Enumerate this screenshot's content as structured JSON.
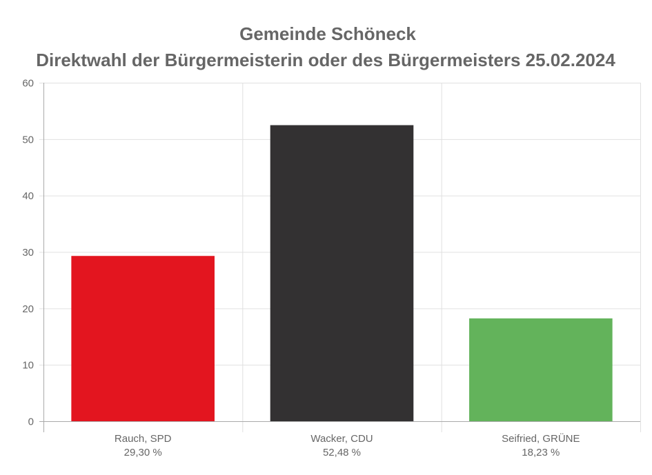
{
  "chart_data": {
    "type": "bar",
    "title": [
      "Gemeinde Schöneck",
      "Direktwahl der Bürgermeisterin oder des Bürgermeisters 25.02.2024"
    ],
    "categories": [
      "Rauch, SPD",
      "Wacker, CDU",
      "Seifried, GRÜNE"
    ],
    "value_labels": [
      "29,30 %",
      "52,48 %",
      "18,23 %"
    ],
    "values": [
      29.3,
      52.48,
      18.23
    ],
    "colors": [
      "#e3151f",
      "#333132",
      "#63b35b"
    ],
    "xlabel": "",
    "ylabel": "",
    "ylim": [
      0,
      60
    ],
    "yticks": [
      0,
      10,
      20,
      30,
      40,
      50,
      60
    ],
    "grid": true,
    "legend": "none"
  }
}
